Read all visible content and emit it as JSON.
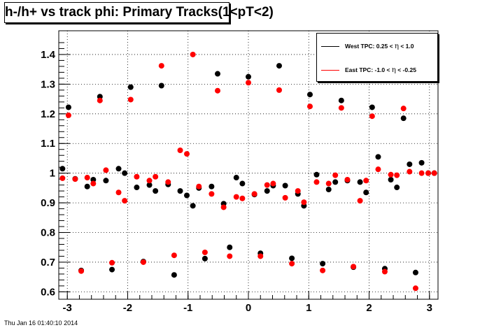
{
  "title": "h-/h+ vs track phi: Primary Tracks(1<pT<2)",
  "footer": "Thu Jan 16 01:40:10 2014",
  "legend": [
    {
      "pre": "West TPC: 0.25 <",
      "eta": "η",
      "post": "< 1.0",
      "color": "#000000"
    },
    {
      "pre": "East TPC: -1.0 <",
      "eta": "η",
      "post": "< -0.25",
      "color": "#ff0000"
    }
  ],
  "chart_data": {
    "type": "scatter",
    "title": "h-/h+ vs track phi: Primary Tracks(1<pT<2)",
    "xlabel": "",
    "ylabel": "",
    "xlim": [
      -3.1416,
      3.1416
    ],
    "ylim": [
      0.575,
      1.48
    ],
    "grid": true,
    "legend_position": "top-right",
    "x_ticks": [
      -3,
      -2,
      -1,
      0,
      1,
      2,
      3
    ],
    "x_tick_labels": [
      "-3",
      "-2",
      "-1",
      "0",
      "1",
      "2",
      "3"
    ],
    "y_ticks": [
      0.6,
      0.7,
      0.8,
      0.9,
      1.0,
      1.1,
      1.2,
      1.3,
      1.4
    ],
    "y_tick_labels": [
      "0.6",
      "0.7",
      "0.8",
      "0.9",
      "1",
      "1.1",
      "1.2",
      "1.3",
      "1.4"
    ],
    "x": [
      -3.08,
      -2.98,
      -2.87,
      -2.77,
      -2.67,
      -2.57,
      -2.46,
      -2.36,
      -2.26,
      -2.15,
      -2.05,
      -1.95,
      -1.85,
      -1.74,
      -1.64,
      -1.54,
      -1.44,
      -1.33,
      -1.23,
      -1.13,
      -1.02,
      -0.92,
      -0.82,
      -0.72,
      -0.61,
      -0.51,
      -0.41,
      -0.31,
      -0.2,
      -0.1,
      0.0,
      0.1,
      0.2,
      0.31,
      0.41,
      0.51,
      0.61,
      0.72,
      0.82,
      0.92,
      1.02,
      1.13,
      1.23,
      1.33,
      1.44,
      1.54,
      1.64,
      1.74,
      1.85,
      1.95,
      2.05,
      2.15,
      2.26,
      2.36,
      2.46,
      2.57,
      2.67,
      2.77,
      2.87,
      2.98,
      3.08
    ],
    "series": [
      {
        "name": "West TPC: 0.25 < η < 1.0",
        "color": "#000000",
        "values": [
          1.015,
          1.222,
          0.981,
          0.672,
          0.955,
          0.978,
          1.258,
          0.975,
          0.675,
          1.015,
          1.0,
          1.29,
          0.952,
          0.702,
          0.96,
          0.94,
          1.295,
          0.962,
          0.657,
          0.94,
          0.925,
          0.89,
          0.95,
          0.712,
          0.955,
          1.335,
          0.897,
          0.75,
          0.985,
          0.965,
          1.325,
          0.928,
          0.73,
          0.94,
          0.958,
          1.362,
          0.958,
          0.713,
          0.93,
          0.89,
          1.265,
          0.995,
          0.695,
          0.945,
          0.97,
          1.245,
          0.975,
          0.683,
          0.97,
          0.935,
          1.222,
          1.055,
          0.678,
          0.978,
          0.952,
          1.185,
          1.03,
          0.665,
          1.035,
          1.0,
          1.0
        ]
      },
      {
        "name": "East TPC: -1.0 < η < -0.25",
        "color": "#ff0000",
        "values": [
          0.983,
          1.195,
          0.98,
          0.67,
          0.985,
          0.965,
          1.245,
          1.01,
          0.698,
          0.935,
          0.907,
          1.248,
          0.988,
          0.7,
          0.975,
          0.988,
          1.362,
          0.97,
          0.723,
          1.077,
          1.065,
          1.4,
          0.955,
          0.733,
          0.93,
          1.278,
          0.885,
          0.72,
          0.92,
          0.915,
          1.305,
          0.93,
          0.72,
          0.96,
          0.965,
          1.28,
          0.917,
          0.695,
          0.94,
          0.902,
          1.225,
          0.97,
          0.672,
          0.965,
          0.993,
          1.22,
          0.978,
          0.685,
          0.907,
          0.975,
          1.192,
          1.013,
          0.668,
          0.995,
          0.993,
          1.218,
          1.005,
          0.612,
          1.0,
          1.0,
          1.0
        ]
      }
    ]
  }
}
